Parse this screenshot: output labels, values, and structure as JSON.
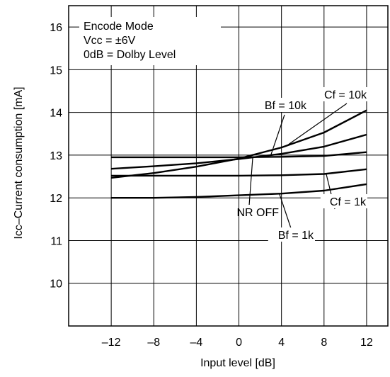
{
  "chart_data": {
    "type": "line",
    "xlabel": "Input level [dB]",
    "ylabel": "Icc–Current consumption [mA]",
    "xlim": [
      -16,
      14
    ],
    "ylim": [
      9,
      16.5
    ],
    "xticks": [
      -12,
      -8,
      -4,
      0,
      4,
      8,
      12
    ],
    "xtick_labels": [
      "–12",
      "–8",
      "–4",
      "0",
      "4",
      "8",
      "12"
    ],
    "yticks": [
      10,
      11,
      12,
      13,
      14,
      15,
      16
    ],
    "ytick_labels": [
      "10",
      "11",
      "12",
      "13",
      "14",
      "15",
      "16"
    ],
    "grid": true,
    "annotation_box": [
      "Encode Mode",
      "Vcc = ±6V",
      "0dB = Dolby Level"
    ],
    "series": [
      {
        "name": "Cf = 10k",
        "x": [
          -12,
          -8,
          -4,
          0,
          4,
          8,
          12
        ],
        "y": [
          12.47,
          12.58,
          12.73,
          12.92,
          13.18,
          13.53,
          14.05
        ]
      },
      {
        "name": "Bf = 10k",
        "x": [
          -12,
          -8,
          -4,
          0,
          4,
          8,
          12
        ],
        "y": [
          12.68,
          12.74,
          12.81,
          12.91,
          13.03,
          13.2,
          13.48
        ]
      },
      {
        "name": "NR OFF",
        "x": [
          -12,
          -8,
          -4,
          0,
          4,
          8,
          12
        ],
        "y": [
          12.95,
          12.95,
          12.95,
          12.95,
          12.96,
          12.98,
          13.07
        ]
      },
      {
        "name": "Cf = 1k",
        "x": [
          -12,
          -8,
          -4,
          0,
          4,
          8,
          12
        ],
        "y": [
          12.52,
          12.52,
          12.52,
          12.52,
          12.53,
          12.56,
          12.67
        ]
      },
      {
        "name": "Bf = 1k",
        "x": [
          -12,
          -8,
          -4,
          0,
          4,
          8,
          12
        ],
        "y": [
          12.0,
          12.0,
          12.02,
          12.06,
          12.1,
          12.17,
          12.32
        ]
      }
    ]
  }
}
